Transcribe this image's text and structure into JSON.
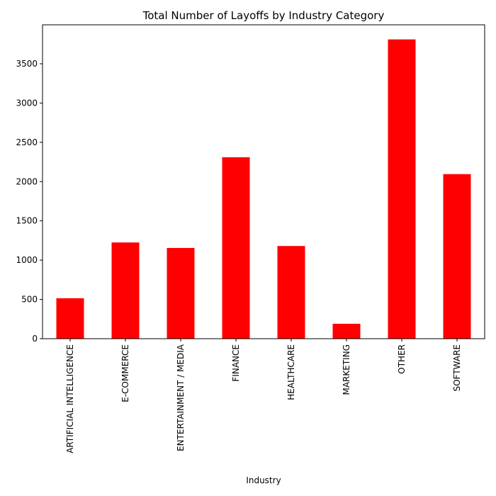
{
  "chart_data": {
    "type": "bar",
    "title": "Total Number of Layoffs by Industry Category",
    "xlabel": "Industry",
    "ylabel": "",
    "categories": [
      "ARTIFICIAL INTELLIGENCE",
      "E-COMMERCE",
      "ENTERTAINMENT / MEDIA",
      "FINANCE",
      "HEALTHCARE",
      "MARKETING",
      "OTHER",
      "SOFTWARE"
    ],
    "values": [
      515,
      1225,
      1155,
      2310,
      1180,
      190,
      3810,
      2095
    ],
    "ylim": [
      0,
      3996
    ],
    "yticks": [
      0,
      500,
      1000,
      1500,
      2000,
      2500,
      3000,
      3500
    ],
    "bar_color": "#ff0000",
    "grid": false,
    "legend": false
  }
}
